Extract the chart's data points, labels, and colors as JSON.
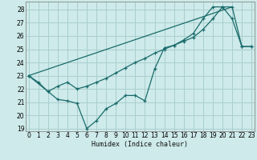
{
  "xlabel": "Humidex (Indice chaleur)",
  "bg_color": "#ceeaea",
  "grid_color": "#aacece",
  "line_color": "#1a6b6b",
  "xlim": [
    0,
    23
  ],
  "ylim": [
    19,
    28.5
  ],
  "yticks": [
    19,
    20,
    21,
    22,
    23,
    24,
    25,
    26,
    27,
    28
  ],
  "xtick_labels": [
    "0",
    "1",
    "2",
    "3",
    "4",
    "5",
    "6",
    "7",
    "8",
    "9",
    "10",
    "11",
    "12",
    "13",
    "14",
    "15",
    "16",
    "17",
    "18",
    "19",
    "20",
    "21",
    "22",
    "23"
  ],
  "series1_x": [
    0,
    1,
    2,
    3,
    4,
    5,
    6,
    7,
    8,
    9,
    10,
    11,
    12,
    13,
    14,
    15,
    16,
    17,
    18,
    19,
    20,
    21,
    22,
    23
  ],
  "series1_y": [
    23,
    22.5,
    21.8,
    21.2,
    21.1,
    20.9,
    19.0,
    19.6,
    20.5,
    20.9,
    21.5,
    21.5,
    21.1,
    23.5,
    25.1,
    25.3,
    25.7,
    26.2,
    27.3,
    28.2,
    28.2,
    27.3,
    25.2,
    25.2
  ],
  "series2_x": [
    0,
    2,
    3,
    4,
    5,
    6,
    7,
    8,
    9,
    10,
    11,
    12,
    13,
    14,
    15,
    16,
    17,
    18,
    19,
    20,
    21,
    22,
    23
  ],
  "series2_y": [
    23,
    21.8,
    22.2,
    22.5,
    22.0,
    22.2,
    22.5,
    22.8,
    23.2,
    23.6,
    24.0,
    24.3,
    24.7,
    25.0,
    25.3,
    25.6,
    25.9,
    26.5,
    27.3,
    28.2,
    28.2,
    25.2,
    25.2
  ],
  "series3_x": [
    0,
    21
  ],
  "series3_y": [
    23.0,
    28.2
  ]
}
